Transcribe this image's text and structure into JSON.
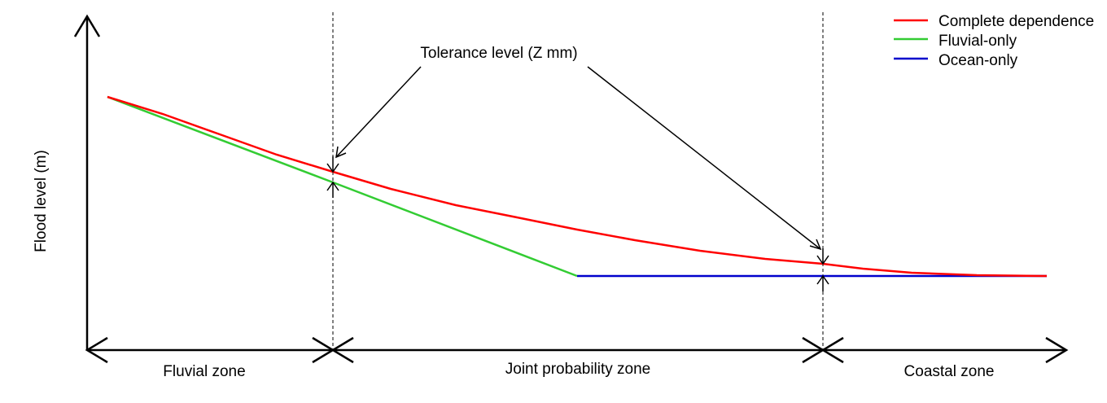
{
  "diagram": {
    "y_axis_label": "Flood level (m)",
    "annotation": "Tolerance level (Z mm)",
    "zones": {
      "fluvial": "Fluvial zone",
      "joint": "Joint probability zone",
      "coastal": "Coastal zone"
    },
    "legend": [
      {
        "label": "Complete dependence",
        "color": "#ff0000"
      },
      {
        "label": "Fluvial-only",
        "color": "#33cc33"
      },
      {
        "label": "Ocean-only",
        "color": "#0000cc"
      }
    ]
  }
}
